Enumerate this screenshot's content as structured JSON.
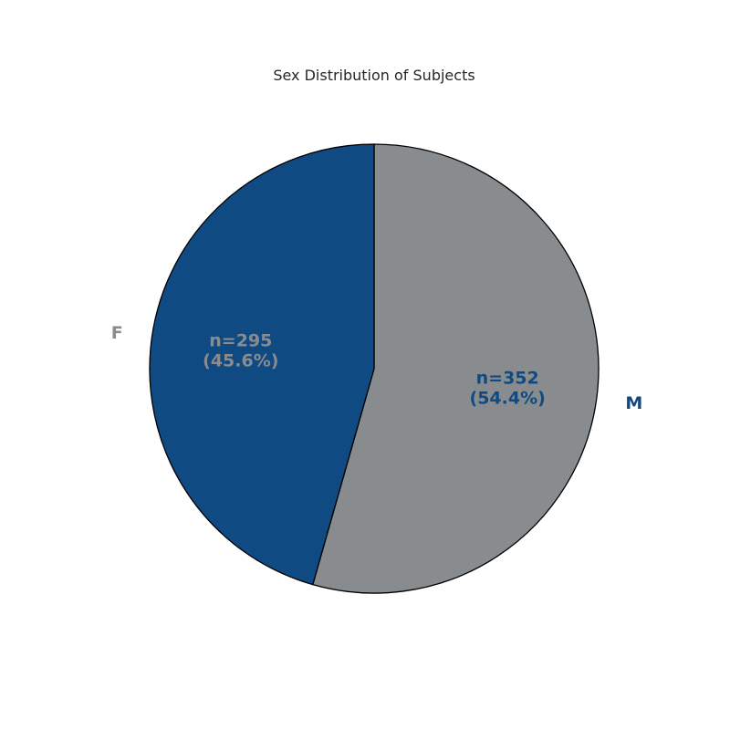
{
  "chart_data": {
    "type": "pie",
    "title": "Sex Distribution of Subjects",
    "categories": [
      "M",
      "F"
    ],
    "values": [
      352,
      295
    ],
    "percentages": [
      54.4,
      45.6
    ],
    "data_labels": [
      {
        "count": "n=352",
        "percent": "(54.4%)"
      },
      {
        "count": "n=295",
        "percent": "(45.6%)"
      }
    ],
    "slice_colors": [
      "#898c8e",
      "#0f4a82"
    ],
    "label_colors": [
      "#0f4a82",
      "#898c8e"
    ],
    "data_label_colors": [
      "#0f4a82",
      "#898c8e"
    ],
    "edge_color": "#000000",
    "start": "top",
    "direction": "clockwise"
  }
}
